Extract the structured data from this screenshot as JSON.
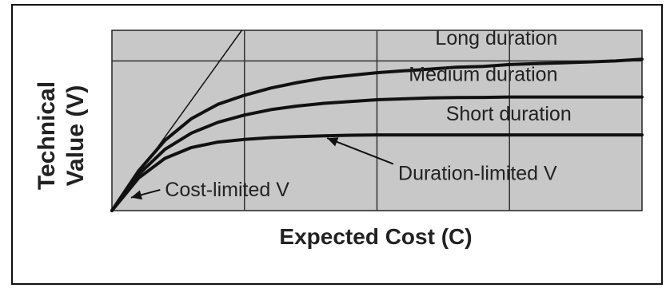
{
  "chart_data": {
    "type": "line",
    "title": "",
    "xlabel": "Expected Cost (C)",
    "ylabel_lines": [
      "Technical",
      "Value (V)"
    ],
    "xlim": [
      0,
      1
    ],
    "ylim": [
      0,
      1
    ],
    "grid": true,
    "series": [
      {
        "name": "Long duration",
        "x": [
          0,
          0.05,
          0.1,
          0.15,
          0.2,
          0.25,
          0.3,
          0.35,
          0.4,
          0.45,
          0.5,
          0.55,
          0.6,
          0.65,
          0.7,
          0.75,
          0.8,
          0.85,
          0.9,
          0.95,
          1.0
        ],
        "y": [
          0,
          0.22,
          0.39,
          0.51,
          0.59,
          0.64,
          0.68,
          0.71,
          0.735,
          0.75,
          0.765,
          0.775,
          0.785,
          0.795,
          0.8,
          0.81,
          0.815,
          0.82,
          0.825,
          0.83,
          0.84
        ]
      },
      {
        "name": "Medium duration",
        "x": [
          0,
          0.05,
          0.1,
          0.15,
          0.2,
          0.25,
          0.3,
          0.35,
          0.4,
          0.45,
          0.5,
          0.55,
          0.6,
          0.65,
          0.7,
          0.75,
          0.8,
          0.85,
          0.9,
          0.95,
          1.0
        ],
        "y": [
          0,
          0.2,
          0.34,
          0.43,
          0.49,
          0.53,
          0.56,
          0.58,
          0.595,
          0.605,
          0.615,
          0.62,
          0.625,
          0.627,
          0.628,
          0.63,
          0.63,
          0.63,
          0.63,
          0.63,
          0.63
        ]
      },
      {
        "name": "Short duration",
        "x": [
          0,
          0.05,
          0.1,
          0.15,
          0.2,
          0.25,
          0.3,
          0.35,
          0.4,
          0.45,
          0.5,
          0.55,
          0.6,
          0.65,
          0.7,
          0.75,
          0.8,
          0.85,
          0.9,
          0.95,
          1.0
        ],
        "y": [
          0,
          0.18,
          0.29,
          0.35,
          0.38,
          0.395,
          0.405,
          0.41,
          0.415,
          0.418,
          0.42,
          0.42,
          0.42,
          0.42,
          0.42,
          0.42,
          0.42,
          0.42,
          0.42,
          0.42,
          0.42
        ]
      },
      {
        "name": "Cost-limited line",
        "x": [
          0,
          0.245
        ],
        "y": [
          0,
          1.0
        ]
      }
    ],
    "annotations": [
      {
        "text": "Long duration",
        "at": [
          0.61,
          0.92
        ]
      },
      {
        "text": "Medium duration",
        "at": [
          0.56,
          0.72
        ]
      },
      {
        "text": "Short duration",
        "at": [
          0.63,
          0.5
        ]
      },
      {
        "text": "Duration-limited V",
        "at": [
          0.54,
          0.17
        ],
        "arrow_to": [
          0.4,
          0.42
        ]
      },
      {
        "text": "Cost-limited V",
        "at": [
          0.1,
          0.08
        ],
        "arrow_to": [
          0.03,
          0.09
        ]
      }
    ]
  }
}
